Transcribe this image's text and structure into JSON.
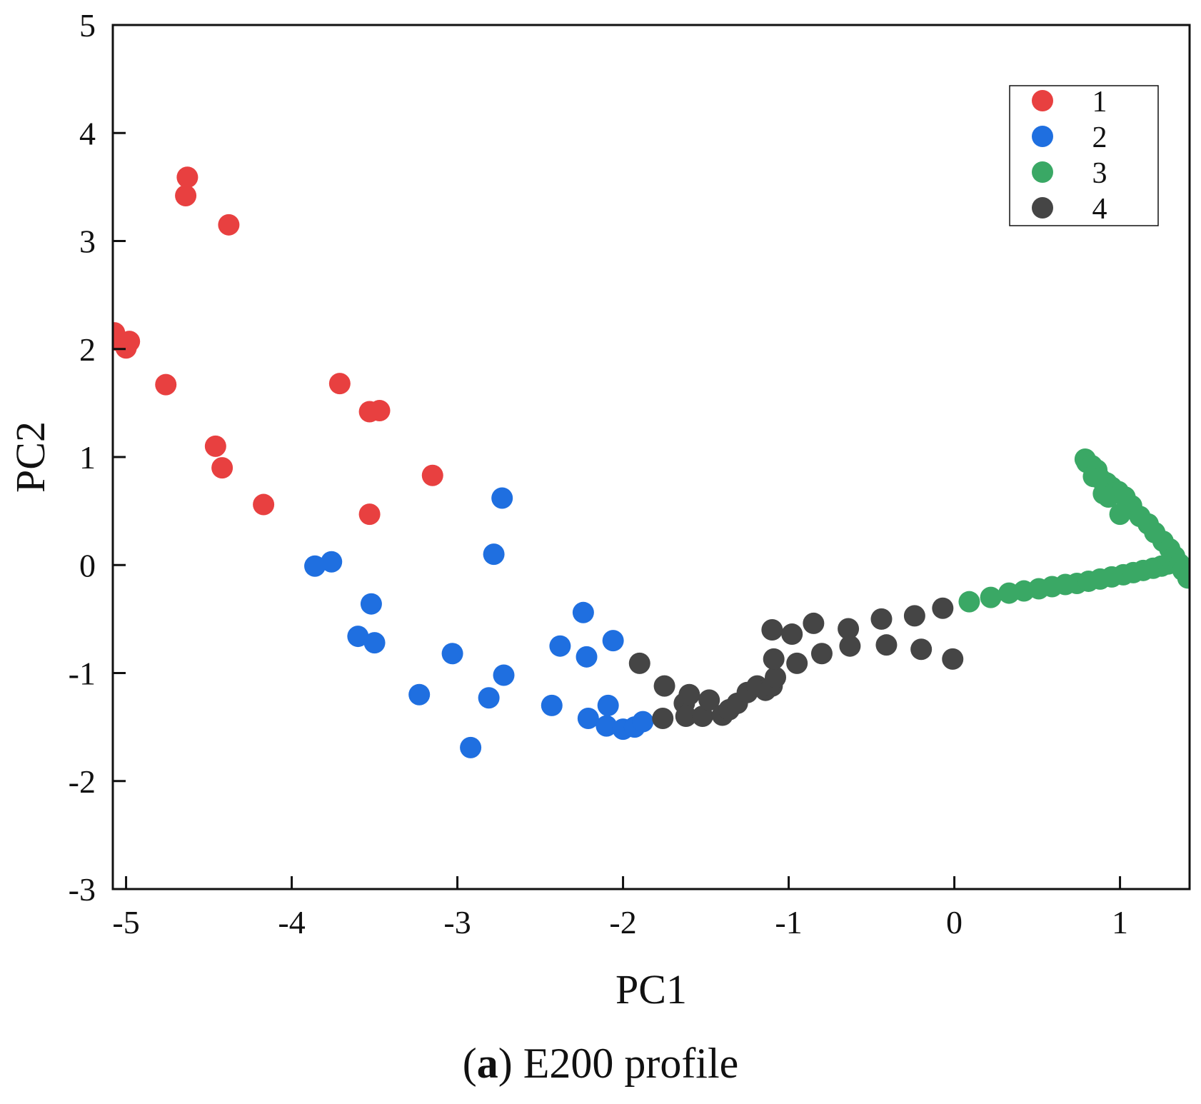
{
  "chart_data": {
    "type": "scatter",
    "title": "",
    "xlabel": "PC1",
    "ylabel": "PC2",
    "xlim": [
      -5.08,
      1.42
    ],
    "ylim": [
      -3,
      5
    ],
    "xticks": [
      -5,
      -4,
      -3,
      -2,
      -1,
      0,
      1
    ],
    "yticks": [
      -3,
      -2,
      -1,
      0,
      1,
      2,
      3,
      4,
      5
    ],
    "xtick_labels": [
      "-5",
      "-4",
      "-3",
      "-2",
      "-1",
      "0",
      "1"
    ],
    "ytick_labels": [
      "-3",
      "-2",
      "-1",
      "0",
      "1",
      "2",
      "3",
      "4",
      "5"
    ],
    "grid": false,
    "legend_position": "top-right",
    "series": [
      {
        "name": "1",
        "color": "#e84040",
        "points": [
          [
            -4.63,
            3.59
          ],
          [
            -4.64,
            3.42
          ],
          [
            -4.38,
            3.15
          ],
          [
            -5.07,
            2.15
          ],
          [
            -5.05,
            2.08
          ],
          [
            -4.98,
            2.07
          ],
          [
            -5.0,
            2.01
          ],
          [
            -4.76,
            1.67
          ],
          [
            -3.71,
            1.68
          ],
          [
            -3.53,
            1.42
          ],
          [
            -3.47,
            1.43
          ],
          [
            -4.46,
            1.1
          ],
          [
            -4.42,
            0.9
          ],
          [
            -4.17,
            0.56
          ],
          [
            -3.15,
            0.83
          ],
          [
            -3.53,
            0.47
          ]
        ]
      },
      {
        "name": "2",
        "color": "#1f6fe0",
        "points": [
          [
            -2.73,
            0.62
          ],
          [
            -2.78,
            0.1
          ],
          [
            -3.86,
            -0.01
          ],
          [
            -3.76,
            0.03
          ],
          [
            -3.52,
            -0.36
          ],
          [
            -3.6,
            -0.66
          ],
          [
            -3.5,
            -0.72
          ],
          [
            -2.24,
            -0.44
          ],
          [
            -2.06,
            -0.7
          ],
          [
            -2.38,
            -0.75
          ],
          [
            -2.22,
            -0.85
          ],
          [
            -3.03,
            -0.82
          ],
          [
            -2.72,
            -1.02
          ],
          [
            -3.23,
            -1.2
          ],
          [
            -2.81,
            -1.23
          ],
          [
            -2.43,
            -1.3
          ],
          [
            -2.09,
            -1.3
          ],
          [
            -2.21,
            -1.42
          ],
          [
            -2.1,
            -1.49
          ],
          [
            -2.0,
            -1.52
          ],
          [
            -1.93,
            -1.5
          ],
          [
            -1.88,
            -1.45
          ],
          [
            -2.92,
            -1.69
          ]
        ]
      },
      {
        "name": "3",
        "color": "#3aa865",
        "points": [
          [
            0.09,
            -0.34
          ],
          [
            0.22,
            -0.3
          ],
          [
            0.33,
            -0.26
          ],
          [
            0.42,
            -0.24
          ],
          [
            0.51,
            -0.22
          ],
          [
            0.59,
            -0.2
          ],
          [
            0.67,
            -0.18
          ],
          [
            0.74,
            -0.17
          ],
          [
            0.81,
            -0.15
          ],
          [
            0.88,
            -0.13
          ],
          [
            0.95,
            -0.11
          ],
          [
            1.02,
            -0.09
          ],
          [
            1.08,
            -0.07
          ],
          [
            1.14,
            -0.05
          ],
          [
            1.2,
            -0.03
          ],
          [
            1.25,
            -0.01
          ],
          [
            1.29,
            0.01
          ],
          [
            1.32,
            0.02
          ],
          [
            0.79,
            0.98
          ],
          [
            0.8,
            0.95
          ],
          [
            0.83,
            0.92
          ],
          [
            0.86,
            0.88
          ],
          [
            0.84,
            0.82
          ],
          [
            0.88,
            0.8
          ],
          [
            0.92,
            0.76
          ],
          [
            0.95,
            0.72
          ],
          [
            0.9,
            0.66
          ],
          [
            0.99,
            0.68
          ],
          [
            0.93,
            0.63
          ],
          [
            1.03,
            0.63
          ],
          [
            1.07,
            0.55
          ],
          [
            1.0,
            0.47
          ],
          [
            1.12,
            0.45
          ],
          [
            1.17,
            0.38
          ],
          [
            1.21,
            0.3
          ],
          [
            1.26,
            0.22
          ],
          [
            1.3,
            0.15
          ],
          [
            1.33,
            0.08
          ],
          [
            1.36,
            0.01
          ],
          [
            1.38,
            -0.05
          ],
          [
            1.41,
            -0.12
          ]
        ]
      },
      {
        "name": "4",
        "color": "#454545",
        "points": [
          [
            -1.9,
            -0.91
          ],
          [
            -1.75,
            -1.12
          ],
          [
            -1.76,
            -1.42
          ],
          [
            -1.63,
            -1.28
          ],
          [
            -1.6,
            -1.2
          ],
          [
            -1.62,
            -1.4
          ],
          [
            -1.52,
            -1.4
          ],
          [
            -1.48,
            -1.25
          ],
          [
            -1.4,
            -1.39
          ],
          [
            -1.36,
            -1.34
          ],
          [
            -1.31,
            -1.28
          ],
          [
            -1.25,
            -1.18
          ],
          [
            -1.19,
            -1.12
          ],
          [
            -1.14,
            -1.16
          ],
          [
            -1.1,
            -1.12
          ],
          [
            -1.08,
            -1.04
          ],
          [
            -1.09,
            -0.87
          ],
          [
            -1.1,
            -0.6
          ],
          [
            -0.98,
            -0.64
          ],
          [
            -0.95,
            -0.91
          ],
          [
            -0.85,
            -0.54
          ],
          [
            -0.8,
            -0.82
          ],
          [
            -0.64,
            -0.59
          ],
          [
            -0.63,
            -0.75
          ],
          [
            -0.44,
            -0.5
          ],
          [
            -0.41,
            -0.74
          ],
          [
            -0.24,
            -0.47
          ],
          [
            -0.2,
            -0.78
          ],
          [
            -0.07,
            -0.4
          ],
          [
            -0.01,
            -0.87
          ]
        ]
      }
    ]
  },
  "caption": {
    "label_bold": "a",
    "text": "E200 profile"
  }
}
